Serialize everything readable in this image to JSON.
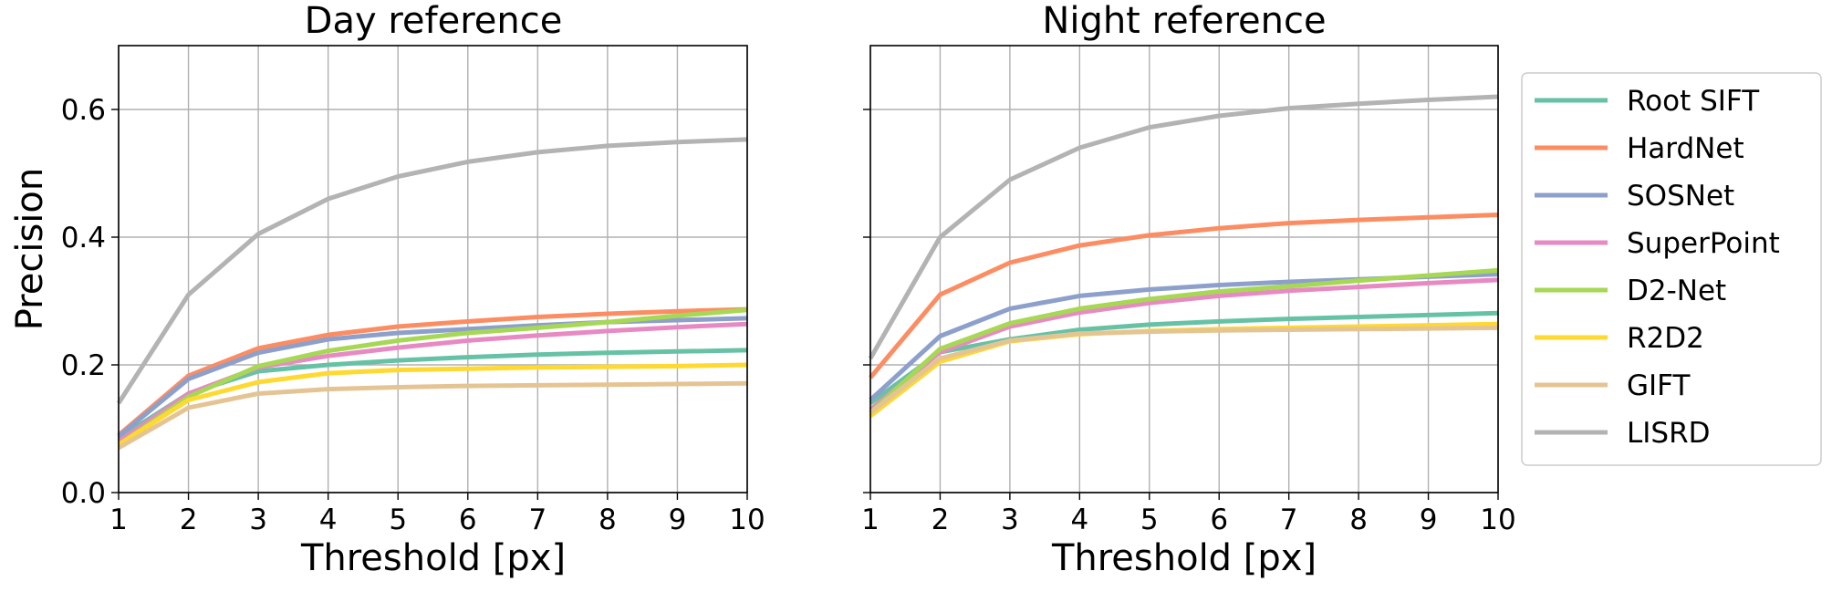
{
  "chart_data": [
    {
      "type": "line",
      "title": "Day reference",
      "xlabel": "Threshold [px]",
      "ylabel": "Precision",
      "x": [
        1,
        2,
        3,
        4,
        5,
        6,
        7,
        8,
        9,
        10
      ],
      "xlim": [
        1,
        10
      ],
      "ylim": [
        0,
        0.7
      ],
      "xticks": [
        "1",
        "2",
        "3",
        "4",
        "5",
        "6",
        "7",
        "8",
        "9",
        "10"
      ],
      "yticks": [
        "0.0",
        "0.2",
        "0.4",
        "0.6"
      ],
      "grid": true,
      "series": [
        {
          "name": "Root SIFT",
          "color": "#66c2a5",
          "values": [
            0.085,
            0.155,
            0.19,
            0.2,
            0.207,
            0.212,
            0.216,
            0.219,
            0.221,
            0.223
          ]
        },
        {
          "name": "HardNet",
          "color": "#fc8d62",
          "values": [
            0.09,
            0.183,
            0.226,
            0.247,
            0.26,
            0.268,
            0.275,
            0.28,
            0.284,
            0.287
          ]
        },
        {
          "name": "SOSNet",
          "color": "#8da0cb",
          "values": [
            0.088,
            0.178,
            0.219,
            0.24,
            0.25,
            0.256,
            0.262,
            0.267,
            0.27,
            0.273
          ]
        },
        {
          "name": "SuperPoint",
          "color": "#e78ac3",
          "values": [
            0.08,
            0.155,
            0.196,
            0.214,
            0.227,
            0.238,
            0.246,
            0.253,
            0.259,
            0.264
          ]
        },
        {
          "name": "D2-Net",
          "color": "#a6d854",
          "values": [
            0.075,
            0.15,
            0.198,
            0.222,
            0.238,
            0.25,
            0.258,
            0.267,
            0.277,
            0.286
          ]
        },
        {
          "name": "R2D2",
          "color": "#ffd92f",
          "values": [
            0.075,
            0.145,
            0.173,
            0.187,
            0.192,
            0.194,
            0.196,
            0.197,
            0.198,
            0.2
          ]
        },
        {
          "name": "GIFT",
          "color": "#e5c494",
          "values": [
            0.07,
            0.133,
            0.155,
            0.162,
            0.165,
            0.167,
            0.168,
            0.169,
            0.17,
            0.171
          ]
        },
        {
          "name": "LISRD",
          "color": "#b3b3b3",
          "values": [
            0.14,
            0.31,
            0.405,
            0.46,
            0.495,
            0.518,
            0.533,
            0.543,
            0.549,
            0.553
          ]
        }
      ]
    },
    {
      "type": "line",
      "title": "Night reference",
      "xlabel": "Threshold [px]",
      "ylabel": "",
      "x": [
        1,
        2,
        3,
        4,
        5,
        6,
        7,
        8,
        9,
        10
      ],
      "xlim": [
        1,
        10
      ],
      "ylim": [
        0,
        0.7
      ],
      "xticks": [
        "1",
        "2",
        "3",
        "4",
        "5",
        "6",
        "7",
        "8",
        "9",
        "10"
      ],
      "yticks": [],
      "grid": true,
      "series": [
        {
          "name": "Root SIFT",
          "color": "#66c2a5",
          "values": [
            0.14,
            0.22,
            0.24,
            0.255,
            0.263,
            0.268,
            0.272,
            0.275,
            0.278,
            0.281
          ]
        },
        {
          "name": "HardNet",
          "color": "#fc8d62",
          "values": [
            0.18,
            0.31,
            0.36,
            0.387,
            0.403,
            0.414,
            0.422,
            0.427,
            0.431,
            0.435
          ]
        },
        {
          "name": "SOSNet",
          "color": "#8da0cb",
          "values": [
            0.145,
            0.245,
            0.288,
            0.308,
            0.318,
            0.325,
            0.33,
            0.334,
            0.338,
            0.342
          ]
        },
        {
          "name": "SuperPoint",
          "color": "#e78ac3",
          "values": [
            0.13,
            0.22,
            0.26,
            0.282,
            0.297,
            0.308,
            0.316,
            0.322,
            0.328,
            0.333
          ]
        },
        {
          "name": "D2-Net",
          "color": "#a6d854",
          "values": [
            0.125,
            0.225,
            0.265,
            0.288,
            0.303,
            0.315,
            0.323,
            0.332,
            0.34,
            0.348
          ]
        },
        {
          "name": "R2D2",
          "color": "#ffd92f",
          "values": [
            0.12,
            0.205,
            0.237,
            0.248,
            0.253,
            0.256,
            0.258,
            0.26,
            0.262,
            0.264
          ]
        },
        {
          "name": "GIFT",
          "color": "#e5c494",
          "values": [
            0.125,
            0.21,
            0.238,
            0.249,
            0.252,
            0.254,
            0.255,
            0.256,
            0.257,
            0.258
          ]
        },
        {
          "name": "LISRD",
          "color": "#b3b3b3",
          "values": [
            0.21,
            0.4,
            0.49,
            0.54,
            0.572,
            0.59,
            0.602,
            0.609,
            0.615,
            0.62
          ]
        }
      ]
    }
  ],
  "legend": {
    "placement": "right",
    "entries": [
      {
        "label": "Root SIFT",
        "color": "#66c2a5"
      },
      {
        "label": "HardNet",
        "color": "#fc8d62"
      },
      {
        "label": "SOSNet",
        "color": "#8da0cb"
      },
      {
        "label": "SuperPoint",
        "color": "#e78ac3"
      },
      {
        "label": "D2-Net",
        "color": "#a6d854"
      },
      {
        "label": "R2D2",
        "color": "#ffd92f"
      },
      {
        "label": "GIFT",
        "color": "#e5c494"
      },
      {
        "label": "LISRD",
        "color": "#b3b3b3"
      }
    ]
  }
}
